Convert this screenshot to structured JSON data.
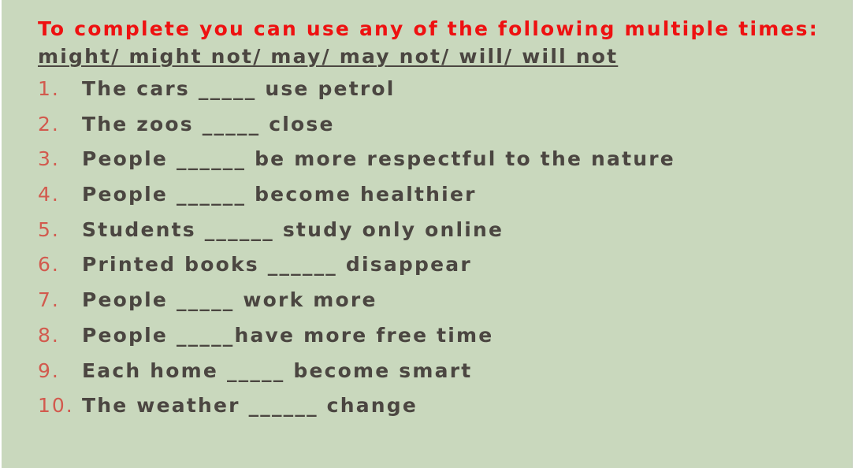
{
  "instruction": "To complete you can use any of the following multiple times:",
  "options_line": "might/ might not/ may/ may not/ will/ will not",
  "items": [
    {
      "number": "1.",
      "text": "The cars _____ use petrol"
    },
    {
      "number": "2.",
      "text": "The zoos _____ close"
    },
    {
      "number": "3.",
      "text": "People ______ be more respectful to the nature"
    },
    {
      "number": "4.",
      "text": "People ______ become healthier"
    },
    {
      "number": "5.",
      "text": "Students ______ study only online"
    },
    {
      "number": "6.",
      "text": "Printed books ______ disappear"
    },
    {
      "number": "7.",
      "text": "People _____ work more"
    },
    {
      "number": "8.",
      "text": "People _____have more free time"
    },
    {
      "number": "9.",
      "text": "Each home _____ become smart"
    },
    {
      "number": "10.",
      "text": "The weather ______ change"
    }
  ],
  "colors": {
    "background": "#c9d8bd",
    "instruction": "#ee1111",
    "body_text": "#4b4641",
    "numbers": "#d25a4e"
  }
}
